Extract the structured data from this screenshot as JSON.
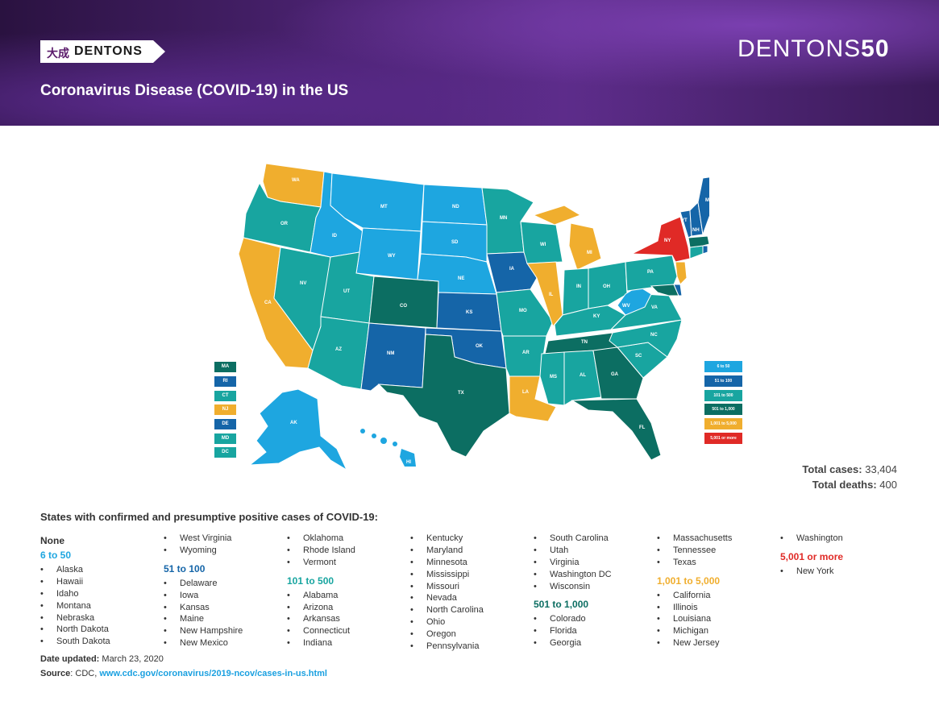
{
  "header": {
    "logo_cn": "大成",
    "logo_en": "DENTONS",
    "brand_word": "DENTONS",
    "brand_num": "50",
    "title": "Coronavirus Disease (COVID-19) in the US"
  },
  "colors": {
    "none": "#ffffff",
    "c6_50": "#1ea6e0",
    "c51_100": "#1565a8",
    "c101_500": "#18a5a0",
    "c501_1000": "#0c6e62",
    "c1001_5000": "#f0ae2e",
    "c5001": "#e02a26"
  },
  "map_labels": {
    "WA": "WA",
    "OR": "OR",
    "CA": "CA",
    "NV": "NV",
    "ID": "ID",
    "MT": "MT",
    "WY": "WY",
    "UT": "UT",
    "AZ": "AZ",
    "CO": "CO",
    "NM": "NM",
    "ND": "ND",
    "SD": "SD",
    "NE": "NE",
    "KS": "KS",
    "OK": "OK",
    "TX": "TX",
    "MN": "MN",
    "IA": "IA",
    "MO": "MO",
    "AR": "AR",
    "LA": "LA",
    "WI": "WI",
    "IL": "IL",
    "MI": "MI",
    "IN": "IN",
    "OH": "OH",
    "KY": "KY",
    "TN": "TN",
    "MS": "MS",
    "AL": "AL",
    "GA": "GA",
    "FL": "FL",
    "SC": "SC",
    "NC": "NC",
    "VA": "VA",
    "WV": "WV",
    "PA": "PA",
    "NY": "NY",
    "VT": "VT",
    "NH": "NH",
    "ME": "ME",
    "AK": "AK",
    "HI": "HI"
  },
  "small_states": [
    {
      "abbr": "MA",
      "color": "#0c6e62"
    },
    {
      "abbr": "RI",
      "color": "#1565a8"
    },
    {
      "abbr": "CT",
      "color": "#18a5a0"
    },
    {
      "abbr": "NJ",
      "color": "#f0ae2e"
    },
    {
      "abbr": "DE",
      "color": "#1565a8"
    },
    {
      "abbr": "MD",
      "color": "#18a5a0"
    },
    {
      "abbr": "DC",
      "color": "#18a5a0"
    }
  ],
  "legend": [
    {
      "label": "6 to 50",
      "color": "#1ea6e0"
    },
    {
      "label": "51 to 100",
      "color": "#1565a8"
    },
    {
      "label": "101 to 500",
      "color": "#18a5a0"
    },
    {
      "label": "501 to 1,000",
      "color": "#0c6e62"
    },
    {
      "label": "1,001 to 5,000",
      "color": "#f0ae2e"
    },
    {
      "label": "5,001 or more",
      "color": "#e02a26"
    }
  ],
  "totals": {
    "cases_label": "Total cases:",
    "cases_value": "33,404",
    "deaths_label": "Total deaths:",
    "deaths_value": "400"
  },
  "list_title": "States with confirmed and presumptive positive cases of COVID-19:",
  "columns": [
    [
      {
        "type": "hd",
        "text": "None",
        "color": "#333333"
      },
      {
        "type": "hd",
        "text": "6 to 50",
        "color": "#1ea6e0"
      },
      {
        "type": "it",
        "text": "Alaska"
      },
      {
        "type": "it",
        "text": "Hawaii"
      },
      {
        "type": "it",
        "text": "Idaho"
      },
      {
        "type": "it",
        "text": "Montana"
      },
      {
        "type": "it",
        "text": "Nebraska"
      },
      {
        "type": "it",
        "text": "North Dakota"
      },
      {
        "type": "it",
        "text": "South Dakota"
      }
    ],
    [
      {
        "type": "it",
        "text": "West Virginia"
      },
      {
        "type": "it",
        "text": "Wyoming"
      },
      {
        "type": "hd",
        "text": "51 to 100",
        "color": "#1565a8"
      },
      {
        "type": "it",
        "text": "Delaware"
      },
      {
        "type": "it",
        "text": "Iowa"
      },
      {
        "type": "it",
        "text": "Kansas"
      },
      {
        "type": "it",
        "text": "Maine"
      },
      {
        "type": "it",
        "text": "New Hampshire"
      },
      {
        "type": "it",
        "text": "New Mexico"
      }
    ],
    [
      {
        "type": "it",
        "text": "Oklahoma"
      },
      {
        "type": "it",
        "text": "Rhode Island"
      },
      {
        "type": "it",
        "text": "Vermont"
      },
      {
        "type": "hd",
        "text": "101 to 500",
        "color": "#18a5a0"
      },
      {
        "type": "it",
        "text": "Alabama"
      },
      {
        "type": "it",
        "text": "Arizona"
      },
      {
        "type": "it",
        "text": "Arkansas"
      },
      {
        "type": "it",
        "text": "Connecticut"
      },
      {
        "type": "it",
        "text": "Indiana"
      }
    ],
    [
      {
        "type": "it",
        "text": "Kentucky"
      },
      {
        "type": "it",
        "text": "Maryland"
      },
      {
        "type": "it",
        "text": "Minnesota"
      },
      {
        "type": "it",
        "text": "Mississippi"
      },
      {
        "type": "it",
        "text": "Missouri"
      },
      {
        "type": "it",
        "text": "Nevada"
      },
      {
        "type": "it",
        "text": "North Carolina"
      },
      {
        "type": "it",
        "text": "Ohio"
      },
      {
        "type": "it",
        "text": "Oregon"
      },
      {
        "type": "it",
        "text": "Pennsylvania"
      }
    ],
    [
      {
        "type": "it",
        "text": "South Carolina"
      },
      {
        "type": "it",
        "text": "Utah"
      },
      {
        "type": "it",
        "text": "Virginia"
      },
      {
        "type": "it",
        "text": "Washington DC"
      },
      {
        "type": "it",
        "text": "Wisconsin"
      },
      {
        "type": "hd",
        "text": "501 to 1,000",
        "color": "#0c6e62"
      },
      {
        "type": "it",
        "text": "Colorado"
      },
      {
        "type": "it",
        "text": "Florida"
      },
      {
        "type": "it",
        "text": "Georgia"
      }
    ],
    [
      {
        "type": "it",
        "text": "Massachusetts"
      },
      {
        "type": "it",
        "text": "Tennessee"
      },
      {
        "type": "it",
        "text": "Texas"
      },
      {
        "type": "hd",
        "text": "1,001 to 5,000",
        "color": "#f0ae2e"
      },
      {
        "type": "it",
        "text": "California"
      },
      {
        "type": "it",
        "text": "Illinois"
      },
      {
        "type": "it",
        "text": "Louisiana"
      },
      {
        "type": "it",
        "text": "Michigan"
      },
      {
        "type": "it",
        "text": "New Jersey"
      }
    ],
    [
      {
        "type": "it",
        "text": "Washington"
      },
      {
        "type": "hd",
        "text": "5,001 or more",
        "color": "#e02a26"
      },
      {
        "type": "it",
        "text": "New York"
      }
    ]
  ],
  "footer": {
    "date_label": "Date updated:",
    "date_value": "March 23, 2020",
    "source_label": "Source",
    "source_text": ": CDC, ",
    "source_link": "www.cdc.gov/coronavirus/2019-ncov/cases-in-us.html"
  }
}
